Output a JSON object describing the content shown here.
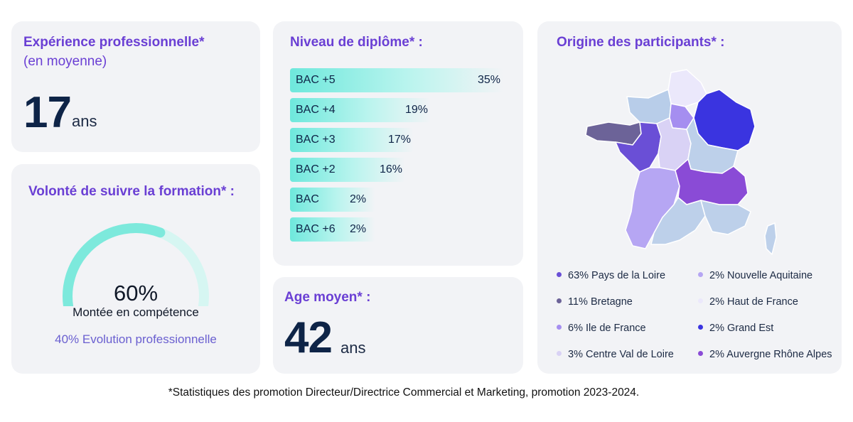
{
  "experience": {
    "title": "Expérience professionnelle*",
    "subtitle": "(en moyenne)",
    "value": "17",
    "unit": "ans"
  },
  "willingness": {
    "title": "Volonté de suivre la formation* :",
    "primary_pct": "60%",
    "primary_fraction": 0.6,
    "primary_label": "Montée en compétence",
    "secondary_label": "40% Evolution professionnelle",
    "colors": {
      "primary": "#7de9dc",
      "remainder": "#d6f6f2"
    }
  },
  "diploma": {
    "title": "Niveau de diplôme* :",
    "rows": [
      {
        "label": "BAC +5",
        "value": "35%"
      },
      {
        "label": "BAC +4",
        "value": "19%"
      },
      {
        "label": "BAC +3",
        "value": "17%"
      },
      {
        "label": "BAC +2",
        "value": "16%"
      },
      {
        "label": "BAC",
        "value": "2%"
      },
      {
        "label": "BAC +6",
        "value": "2%"
      }
    ]
  },
  "age": {
    "title": "Age moyen* :",
    "value": "42",
    "unit": "ans"
  },
  "origin": {
    "title": "Origine des participants* :",
    "legend": [
      {
        "label": "63%  Pays de la Loire",
        "color": "#6a4fd6"
      },
      {
        "label": "11% Bretagne",
        "color": "#6c6398"
      },
      {
        "label": "6% Ile de France",
        "color": "#a58ef0"
      },
      {
        "label": "3% Centre Val de Loire",
        "color": "#d9d2f5"
      },
      {
        "label": "2% Nouvelle Aquitaine",
        "color": "#b6a6f3"
      },
      {
        "label": "2% Haut de France",
        "color": "#ebe8fb"
      },
      {
        "label": "2% Grand Est",
        "color": "#3a34e0"
      },
      {
        "label": "2% Auvergne Rhône Alpes",
        "color": "#8a4bd6"
      }
    ]
  },
  "chart_data": [
    {
      "type": "bar",
      "title": "Niveau de diplôme* :",
      "categories": [
        "BAC +5",
        "BAC +4",
        "BAC +3",
        "BAC +2",
        "BAC",
        "BAC +6"
      ],
      "values": [
        35,
        19,
        17,
        16,
        2,
        2
      ],
      "orientation": "horizontal",
      "unit": "%"
    },
    {
      "type": "pie",
      "title": "Volonté de suivre la formation* :",
      "categories": [
        "Montée en compétence",
        "Evolution professionnelle"
      ],
      "values": [
        60,
        40
      ],
      "unit": "%",
      "style": "half-gauge"
    },
    {
      "type": "heatmap",
      "title": "Origine des participants* :",
      "categories": [
        "Pays de la Loire",
        "Bretagne",
        "Ile de France",
        "Centre Val de Loire",
        "Nouvelle Aquitaine",
        "Haut de France",
        "Grand Est",
        "Auvergne Rhône Alpes"
      ],
      "values": [
        63,
        11,
        6,
        3,
        2,
        2,
        2,
        2
      ],
      "unit": "%",
      "style": "choropleth map"
    }
  ],
  "footnote": "*Statistiques des promotion Directeur/Directrice Commercial et Marketing, promotion 2023-2024."
}
